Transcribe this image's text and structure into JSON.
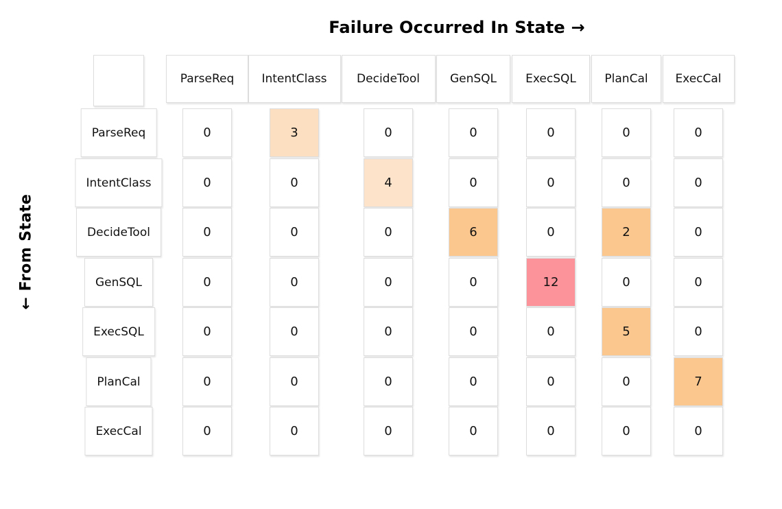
{
  "chart_data": {
    "type": "heatmap",
    "title": "Failure Occurred In State →",
    "row_axis_label": "← From State",
    "col_axis_meaning": "Failure Occurred In State",
    "row_axis_meaning": "From State",
    "states": [
      "ParseReq",
      "IntentClass",
      "DecideTool",
      "GenSQL",
      "ExecSQL",
      "PlanCal",
      "ExecCal"
    ],
    "rows": [
      "ParseReq",
      "IntentClass",
      "DecideTool",
      "GenSQL",
      "ExecSQL",
      "PlanCal",
      "ExecCal"
    ],
    "columns": [
      "ParseReq",
      "IntentClass",
      "DecideTool",
      "GenSQL",
      "ExecSQL",
      "PlanCal",
      "ExecCal"
    ],
    "matrix": [
      [
        0,
        3,
        0,
        0,
        0,
        0,
        0
      ],
      [
        0,
        0,
        4,
        0,
        0,
        0,
        0
      ],
      [
        0,
        0,
        0,
        6,
        0,
        2,
        0
      ],
      [
        0,
        0,
        0,
        0,
        12,
        0,
        0
      ],
      [
        0,
        0,
        0,
        0,
        0,
        5,
        0
      ],
      [
        0,
        0,
        0,
        0,
        0,
        0,
        7
      ],
      [
        0,
        0,
        0,
        0,
        0,
        0,
        0
      ]
    ],
    "colors": {
      "cell_default": "#ffffff",
      "cell_border": "#dddddd",
      "text": "#111111",
      "highlights": [
        {
          "row": 0,
          "col": 1,
          "value": 3,
          "color": "#fcdfc0"
        },
        {
          "row": 1,
          "col": 2,
          "value": 4,
          "color": "#fce3c9"
        },
        {
          "row": 2,
          "col": 3,
          "value": 6,
          "color": "#fbc78e"
        },
        {
          "row": 2,
          "col": 5,
          "value": 2,
          "color": "#fbc78e"
        },
        {
          "row": 3,
          "col": 4,
          "value": 12,
          "color": "#fc939a"
        },
        {
          "row": 4,
          "col": 5,
          "value": 5,
          "color": "#fbc78e"
        },
        {
          "row": 5,
          "col": 6,
          "value": 7,
          "color": "#fbc78e"
        }
      ]
    },
    "legend": "none",
    "grid": "cell-boxes-with-light-gray-borders"
  }
}
